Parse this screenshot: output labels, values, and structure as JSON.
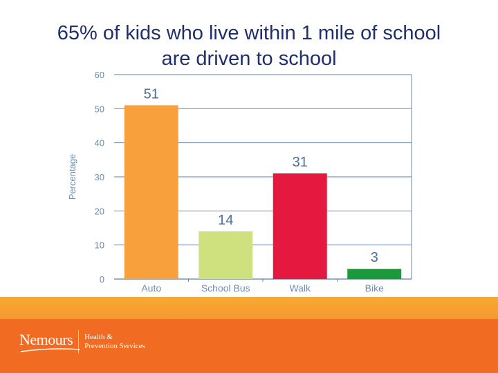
{
  "slide": {
    "title": "65% of kids who live within 1 mile of school are driven to school"
  },
  "footer": {
    "logo_text": "Nemours",
    "sub_line1": "Health &",
    "sub_line2": "Prevention Services",
    "colors": {
      "band_top": "#f7a832",
      "band_main": "#f26b22"
    }
  },
  "chart_data": {
    "type": "bar",
    "title": "",
    "xlabel": "",
    "ylabel": "Percentage",
    "categories": [
      "Auto",
      "School Bus",
      "Walk",
      "Bike"
    ],
    "values": [
      51,
      14,
      31,
      3
    ],
    "data_labels": [
      "51",
      "14",
      "31",
      "3"
    ],
    "colors": [
      "#f7a03c",
      "#cfe07f",
      "#e5183f",
      "#1a9a3a"
    ],
    "ylim": [
      0,
      60
    ],
    "yticks": [
      0,
      10,
      20,
      30,
      40,
      50,
      60
    ],
    "grid": true
  }
}
